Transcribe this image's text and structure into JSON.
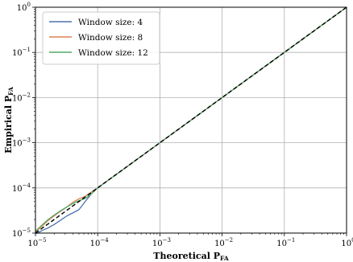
{
  "chart_data": {
    "type": "line",
    "xlabel": {
      "main": "Theoretical P",
      "sub": "FA"
    },
    "ylabel": {
      "main": "Empirical P",
      "sub": "FA"
    },
    "xscale": "log",
    "yscale": "log",
    "xlim": [
      1e-05,
      1
    ],
    "ylim": [
      1e-05,
      1
    ],
    "x_ticks": [
      {
        "base": "10",
        "exp": "−5"
      },
      {
        "base": "10",
        "exp": "−4"
      },
      {
        "base": "10",
        "exp": "−3"
      },
      {
        "base": "10",
        "exp": "−2"
      },
      {
        "base": "10",
        "exp": "−1"
      },
      {
        "base": "10",
        "exp": "0"
      }
    ],
    "y_ticks": [
      {
        "base": "10",
        "exp": "−5"
      },
      {
        "base": "10",
        "exp": "−4"
      },
      {
        "base": "10",
        "exp": "−3"
      },
      {
        "base": "10",
        "exp": "−2"
      },
      {
        "base": "10",
        "exp": "−1"
      },
      {
        "base": "10",
        "exp": "0"
      }
    ],
    "grid": true,
    "legend_position": "top-left",
    "reference_line": {
      "style": "dashed",
      "color": "#000000",
      "x": [
        1e-05,
        1
      ],
      "y": [
        1e-05,
        1
      ]
    },
    "series": [
      {
        "name": "Window size: 4",
        "color": "#4c72b0",
        "x": [
          1e-05,
          1.3e-05,
          1.6e-05,
          2e-05,
          2.5e-05,
          3.2e-05,
          4e-05,
          5e-05,
          6.3e-05,
          8e-05,
          0.0001,
          0.00015,
          0.0002,
          0.0005,
          0.001,
          0.01,
          0.1,
          1
        ],
        "y": [
          9.5e-06,
          1.15e-05,
          1.3e-05,
          1.55e-05,
          1.9e-05,
          2.4e-05,
          2.8e-05,
          3.3e-05,
          5e-05,
          7.5e-05,
          0.0001,
          0.00015,
          0.0002,
          0.0005,
          0.001,
          0.01,
          0.1,
          1
        ]
      },
      {
        "name": "Window size: 8",
        "color": "#dd8452",
        "x": [
          1e-05,
          1.3e-05,
          1.6e-05,
          2e-05,
          2.5e-05,
          3.2e-05,
          4e-05,
          5e-05,
          6.3e-05,
          8e-05,
          0.0001,
          0.00015,
          0.0002,
          0.0005,
          0.001,
          0.01,
          0.1,
          1
        ],
        "y": [
          1.05e-05,
          1.45e-05,
          1.9e-05,
          2.4e-05,
          3e-05,
          3.8e-05,
          4.8e-05,
          5.7e-05,
          6.5e-05,
          8.2e-05,
          0.0001,
          0.00015,
          0.0002,
          0.0005,
          0.001,
          0.01,
          0.1,
          1
        ]
      },
      {
        "name": "Window size: 12",
        "color": "#55a868",
        "x": [
          1e-05,
          1.3e-05,
          1.6e-05,
          2e-05,
          2.5e-05,
          3.2e-05,
          4e-05,
          5e-05,
          6.3e-05,
          8e-05,
          0.0001,
          0.00015,
          0.0002,
          0.0005,
          0.001,
          0.01,
          0.1,
          1
        ],
        "y": [
          1.1e-05,
          1.55e-05,
          2e-05,
          2.5e-05,
          3.1e-05,
          3.8e-05,
          4.5e-05,
          5.2e-05,
          5.8e-05,
          7.5e-05,
          0.0001,
          0.00015,
          0.0002,
          0.0005,
          0.001,
          0.01,
          0.1,
          1
        ]
      }
    ]
  }
}
